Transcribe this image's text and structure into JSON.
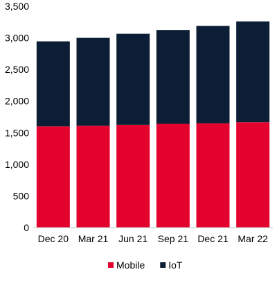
{
  "chart_data": {
    "type": "bar",
    "stacked": true,
    "title": "",
    "xlabel": "",
    "ylabel": "",
    "categories": [
      "Dec 20",
      "Mar 21",
      "Jun 21",
      "Sep 21",
      "Dec 21",
      "Mar 22"
    ],
    "series": [
      {
        "name": "Mobile",
        "color": "#e4032e",
        "values": [
          1600,
          1610,
          1625,
          1640,
          1650,
          1665
        ]
      },
      {
        "name": "IoT",
        "color": "#0c1e35",
        "values": [
          1345,
          1390,
          1440,
          1485,
          1540,
          1595
        ]
      }
    ],
    "ylim": [
      0,
      3500
    ],
    "yticks": [
      0,
      500,
      1000,
      1500,
      2000,
      2500,
      3000,
      3500
    ],
    "ytick_labels": [
      "0",
      "500",
      "1,000",
      "1,500",
      "2,000",
      "2,500",
      "3,000",
      "3,500"
    ],
    "grid": false,
    "legend_position": "bottom"
  }
}
